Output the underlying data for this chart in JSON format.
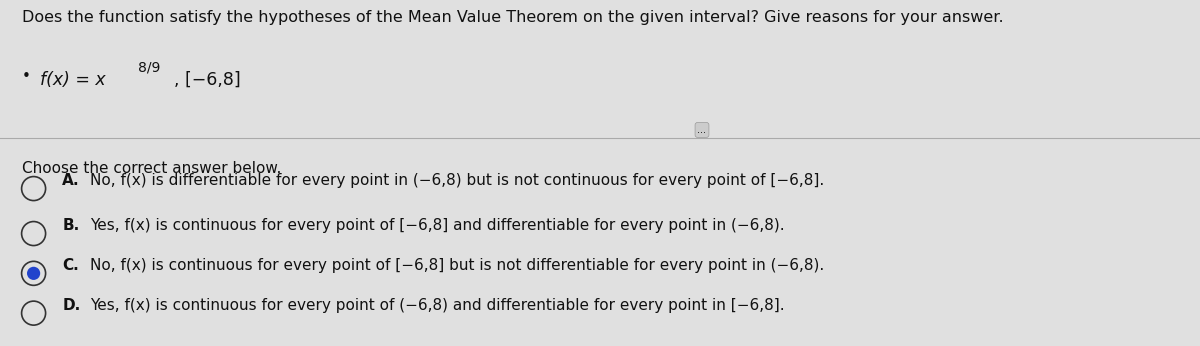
{
  "title_line": "Does the function satisfy the hypotheses of the Mean Value Theorem on the given interval? Give reasons for your answer.",
  "function_label": "f(x) = x",
  "exponent": "8/9",
  "interval": ", [−6,8]",
  "choose_text": "Choose the correct answer below.",
  "options": [
    {
      "label": "A.",
      "text": "No, f(x) is differentiable for every point in (−6,8) but is not continuous for every point of [−6,8].",
      "selected": false
    },
    {
      "label": "B.",
      "text": "Yes, f(x) is continuous for every point of [−6,8] and differentiable for every point in (−6,8).",
      "selected": false
    },
    {
      "label": "C.",
      "text": "No, f(x) is continuous for every point of [−6,8] but is not differentiable for every point in (−6,8).",
      "selected": true
    },
    {
      "label": "D.",
      "text": "Yes, f(x) is continuous for every point of (−6,8) and differentiable for every point in [−6,8].",
      "selected": false
    }
  ],
  "bg_color": "#e0e0e0",
  "text_color": "#111111",
  "selected_color": "#1a1aff",
  "radio_color": "#333333",
  "selected_radio_fill": "#2244cc",
  "divider_color": "#aaaaaa",
  "title_fontsize": 11.5,
  "body_fontsize": 11.0,
  "option_fontsize": 11.0
}
